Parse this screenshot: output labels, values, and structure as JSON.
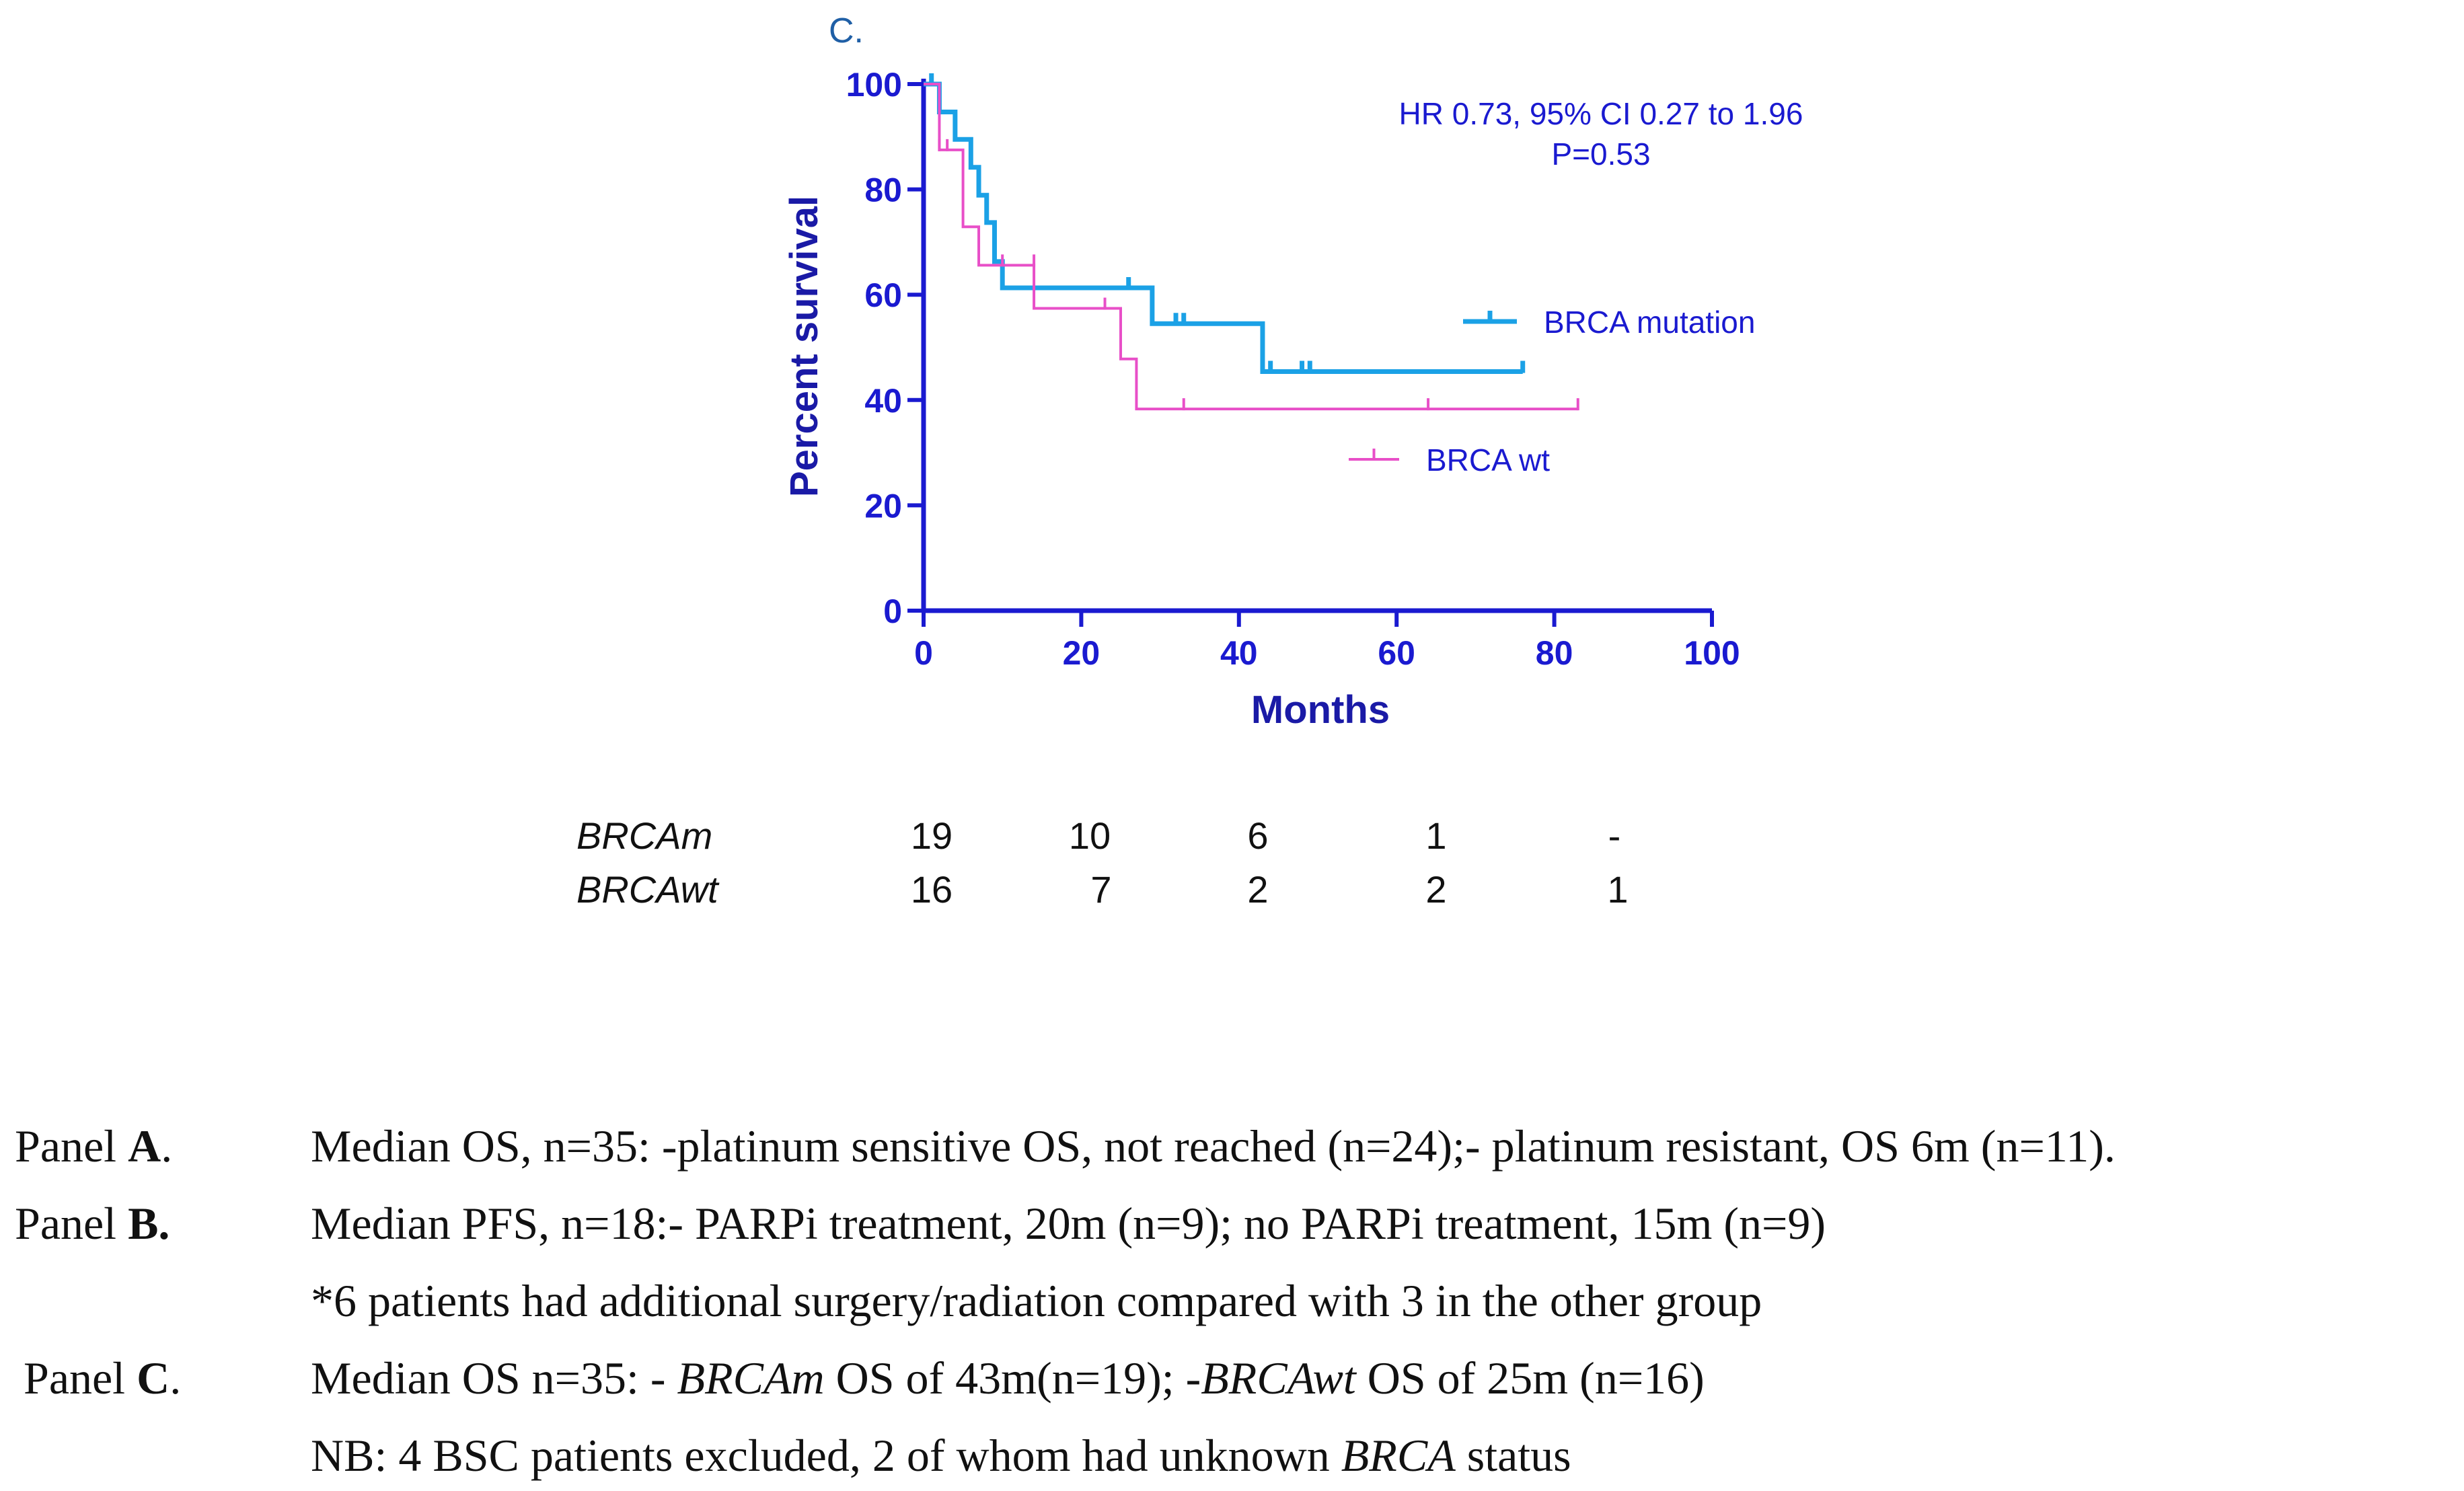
{
  "chart_data": {
    "type": "line",
    "subtype": "kaplan-meier",
    "panel_label": "C.",
    "xlabel": "Months",
    "ylabel": "Percent survival",
    "xlim": [
      0,
      100
    ],
    "ylim": [
      0,
      100
    ],
    "x_ticks": [
      0,
      20,
      40,
      60,
      80,
      100
    ],
    "y_ticks": [
      0,
      20,
      40,
      60,
      80,
      100
    ],
    "annotation": [
      "HR 0.73, 95% CI 0.27 to 1.96",
      "P=0.53"
    ],
    "series": [
      {
        "name": "BRCA mutation",
        "color": "#1ba1e6",
        "steps": [
          [
            0,
            100
          ],
          [
            2,
            100
          ],
          [
            2,
            94.7
          ],
          [
            4,
            94.7
          ],
          [
            4,
            89.5
          ],
          [
            6,
            89.5
          ],
          [
            6,
            84.2
          ],
          [
            7,
            84.2
          ],
          [
            7,
            78.9
          ],
          [
            8,
            78.9
          ],
          [
            8,
            73.7
          ],
          [
            9,
            73.7
          ],
          [
            9,
            66.3
          ],
          [
            10,
            66.3
          ],
          [
            10,
            61.3
          ],
          [
            29,
            61.3
          ],
          [
            29,
            54.5
          ],
          [
            43,
            54.5
          ],
          [
            43,
            45.4
          ],
          [
            76,
            45.4
          ]
        ],
        "censors": [
          [
            1,
            100
          ],
          [
            26,
            61.3
          ],
          [
            32,
            54.5
          ],
          [
            33,
            54.5
          ],
          [
            44,
            45.4
          ],
          [
            48,
            45.4
          ],
          [
            49,
            45.4
          ],
          [
            76,
            45.4
          ]
        ]
      },
      {
        "name": "BRCA wt",
        "color": "#e84fc8",
        "steps": [
          [
            0,
            100
          ],
          [
            2,
            100
          ],
          [
            2,
            87.5
          ],
          [
            5,
            87.5
          ],
          [
            5,
            72.9
          ],
          [
            7,
            72.9
          ],
          [
            7,
            65.6
          ],
          [
            14,
            65.6
          ],
          [
            14,
            57.4
          ],
          [
            25,
            57.4
          ],
          [
            25,
            47.8
          ],
          [
            27,
            47.8
          ],
          [
            27,
            38.3
          ],
          [
            83,
            38.3
          ]
        ],
        "censors": [
          [
            2,
            87.5
          ],
          [
            3,
            87.5
          ],
          [
            10,
            65.6
          ],
          [
            14,
            65.6
          ],
          [
            23,
            57.4
          ],
          [
            33,
            38.3
          ],
          [
            64,
            38.3
          ],
          [
            83,
            38.3
          ]
        ]
      }
    ]
  },
  "risk_table": {
    "rows": [
      {
        "name": "BRCAm",
        "values": [
          "19",
          "10",
          "6",
          "1",
          "-"
        ]
      },
      {
        "name": "BRCAwt",
        "values": [
          "16",
          "7",
          "2",
          "2",
          "1"
        ]
      }
    ]
  },
  "captions": [
    {
      "label_pre": "Panel ",
      "label_bold": "A",
      "label_post": ".",
      "text": [
        {
          "t": "Median OS, n=35: -platinum sensitive OS, not reached (n=24);- platinum resistant, OS 6m (n=11)."
        }
      ]
    },
    {
      "label_pre": "Panel ",
      "label_bold": "B.",
      "label_post": "",
      "text": [
        {
          "t": "Median PFS, n=18:- PARPi treatment, 20m (n=9); no PARPi treatment, 15m (n=9)"
        }
      ]
    },
    {
      "label_pre": "",
      "label_bold": "",
      "label_post": "",
      "text": [
        {
          "t": "*6 patients had additional surgery/radiation compared with 3 in the other group"
        }
      ]
    },
    {
      "label_pre": "Panel ",
      "label_bold": "C",
      "label_post": ".",
      "text": [
        {
          "t": "Median OS n=35: - "
        },
        {
          "t": "BRCAm",
          "i": true
        },
        {
          "t": " OS of 43m(n=19); -"
        },
        {
          "t": "BRCAwt",
          "i": true
        },
        {
          "t": " OS of 25m (n=16)"
        }
      ]
    },
    {
      "label_pre": "",
      "label_bold": "",
      "label_post": "",
      "text": [
        {
          "t": "NB: 4 BSC patients excluded, 2 of whom had unknown "
        },
        {
          "t": "BRCA",
          "i": true
        },
        {
          "t": " status"
        }
      ]
    }
  ]
}
